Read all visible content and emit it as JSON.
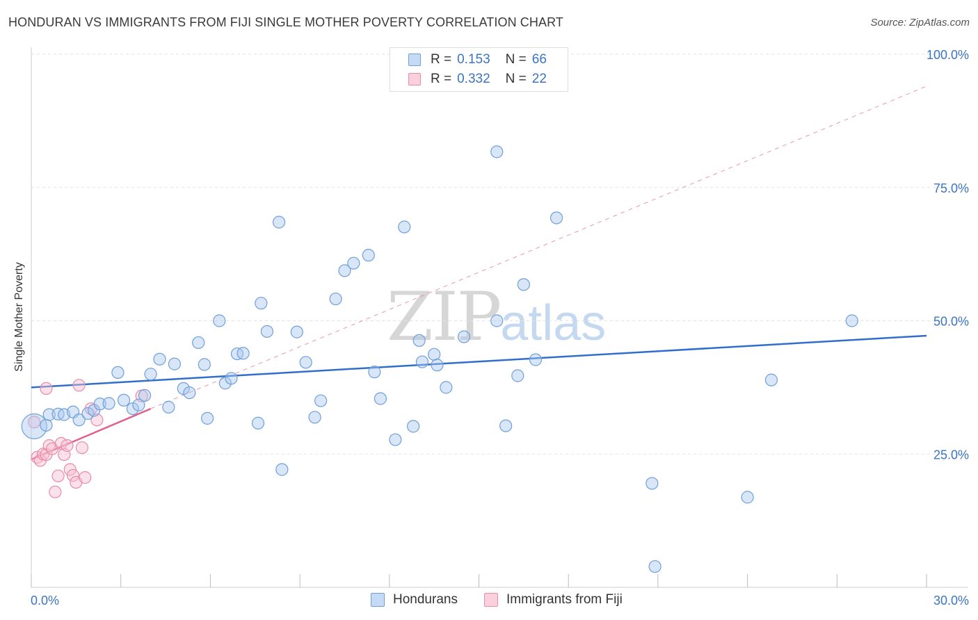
{
  "title": "HONDURAN VS IMMIGRANTS FROM FIJI SINGLE MOTHER POVERTY CORRELATION CHART",
  "source": "Source: ZipAtlas.com",
  "watermark": {
    "part1": "ZIP",
    "part2": "atlas"
  },
  "colors": {
    "blue_fill": "#a9c8ef",
    "blue_stroke": "#6f9fd8",
    "blue_line": "#2f6fcb",
    "pink_fill": "#f6bfd0",
    "pink_stroke": "#e88aa8",
    "pink_line": "#e0628d",
    "tick_text": "#3a74c4",
    "grid": "#e2e2e2"
  },
  "legend": {
    "rows": [
      {
        "r_label": "R =",
        "r_value": "0.153",
        "n_label": "N =",
        "n_value": "66",
        "color": "blue"
      },
      {
        "r_label": "R =",
        "r_value": "0.332",
        "n_label": "N =",
        "n_value": "22",
        "color": "pink"
      }
    ]
  },
  "chart_data": {
    "type": "scatter",
    "title": "HONDURAN VS IMMIGRANTS FROM FIJI SINGLE MOTHER POVERTY CORRELATION CHART",
    "xlabel": "",
    "ylabel": "Single Mother Poverty",
    "xlim": [
      0,
      30
    ],
    "ylim": [
      0,
      100
    ],
    "x_tick_labels": [
      "0.0%",
      "30.0%"
    ],
    "y_tick_values": [
      25,
      50,
      75,
      100
    ],
    "y_tick_labels": [
      "25.0%",
      "50.0%",
      "75.0%",
      "100.0%"
    ],
    "grid": true,
    "legend_position": "top-center",
    "series": [
      {
        "name": "Hondurans",
        "color": "blue",
        "trend": {
          "x": [
            0,
            30
          ],
          "y": [
            37.5,
            47.2
          ]
        },
        "points": [
          [
            0.1,
            30.2
          ],
          [
            0.5,
            30.4
          ],
          [
            0.6,
            32.4
          ],
          [
            0.9,
            32.5
          ],
          [
            1.1,
            32.4
          ],
          [
            1.4,
            32.9
          ],
          [
            1.6,
            31.4
          ],
          [
            1.9,
            32.6
          ],
          [
            2.1,
            33.2
          ],
          [
            2.3,
            34.4
          ],
          [
            2.6,
            34.5
          ],
          [
            2.9,
            40.3
          ],
          [
            3.1,
            35.1
          ],
          [
            3.4,
            33.5
          ],
          [
            3.6,
            34.2
          ],
          [
            3.8,
            36.0
          ],
          [
            4.0,
            40.0
          ],
          [
            4.3,
            42.8
          ],
          [
            4.6,
            33.8
          ],
          [
            4.8,
            41.9
          ],
          [
            5.1,
            37.3
          ],
          [
            5.3,
            36.5
          ],
          [
            5.6,
            45.9
          ],
          [
            5.8,
            41.8
          ],
          [
            5.9,
            31.7
          ],
          [
            6.3,
            50.0
          ],
          [
            6.5,
            38.3
          ],
          [
            6.7,
            39.2
          ],
          [
            6.9,
            43.8
          ],
          [
            7.1,
            43.9
          ],
          [
            7.6,
            30.8
          ],
          [
            7.7,
            53.3
          ],
          [
            7.9,
            48.0
          ],
          [
            8.3,
            68.5
          ],
          [
            8.4,
            22.1
          ],
          [
            8.9,
            47.9
          ],
          [
            9.2,
            42.2
          ],
          [
            9.5,
            31.9
          ],
          [
            9.7,
            35.0
          ],
          [
            10.2,
            54.1
          ],
          [
            10.5,
            59.4
          ],
          [
            10.8,
            60.8
          ],
          [
            11.3,
            62.3
          ],
          [
            11.5,
            40.4
          ],
          [
            11.7,
            35.4
          ],
          [
            12.2,
            27.7
          ],
          [
            12.5,
            67.6
          ],
          [
            12.8,
            30.2
          ],
          [
            13.0,
            46.3
          ],
          [
            13.1,
            42.3
          ],
          [
            13.5,
            43.7
          ],
          [
            13.6,
            41.7
          ],
          [
            13.9,
            37.5
          ],
          [
            14.5,
            47.0
          ],
          [
            15.6,
            81.7
          ],
          [
            15.6,
            50.0
          ],
          [
            15.9,
            30.3
          ],
          [
            16.3,
            39.7
          ],
          [
            16.5,
            56.8
          ],
          [
            16.9,
            42.7
          ],
          [
            17.6,
            69.3
          ],
          [
            20.8,
            19.5
          ],
          [
            20.9,
            3.9
          ],
          [
            24.0,
            16.9
          ],
          [
            24.8,
            38.9
          ],
          [
            27.5,
            50.0
          ]
        ]
      },
      {
        "name": "Immigrants from Fiji",
        "color": "pink",
        "trend": {
          "x": [
            0,
            4.0
          ],
          "y": [
            24.0,
            33.5
          ],
          "dashed_extension": {
            "x": [
              4.0,
              30
            ],
            "y": [
              33.5,
              94.0
            ]
          }
        },
        "points": [
          [
            0.1,
            31.0
          ],
          [
            0.2,
            24.4
          ],
          [
            0.3,
            23.8
          ],
          [
            0.4,
            25.0
          ],
          [
            0.5,
            24.9
          ],
          [
            0.5,
            37.3
          ],
          [
            0.6,
            26.6
          ],
          [
            0.7,
            26.0
          ],
          [
            0.8,
            17.9
          ],
          [
            0.9,
            20.9
          ],
          [
            1.0,
            27.0
          ],
          [
            1.1,
            24.9
          ],
          [
            1.2,
            26.6
          ],
          [
            1.3,
            22.1
          ],
          [
            1.4,
            21.0
          ],
          [
            1.5,
            19.7
          ],
          [
            1.6,
            37.9
          ],
          [
            1.7,
            26.2
          ],
          [
            1.8,
            20.6
          ],
          [
            2.0,
            33.5
          ],
          [
            2.2,
            31.4
          ],
          [
            3.7,
            35.9
          ]
        ]
      }
    ]
  }
}
